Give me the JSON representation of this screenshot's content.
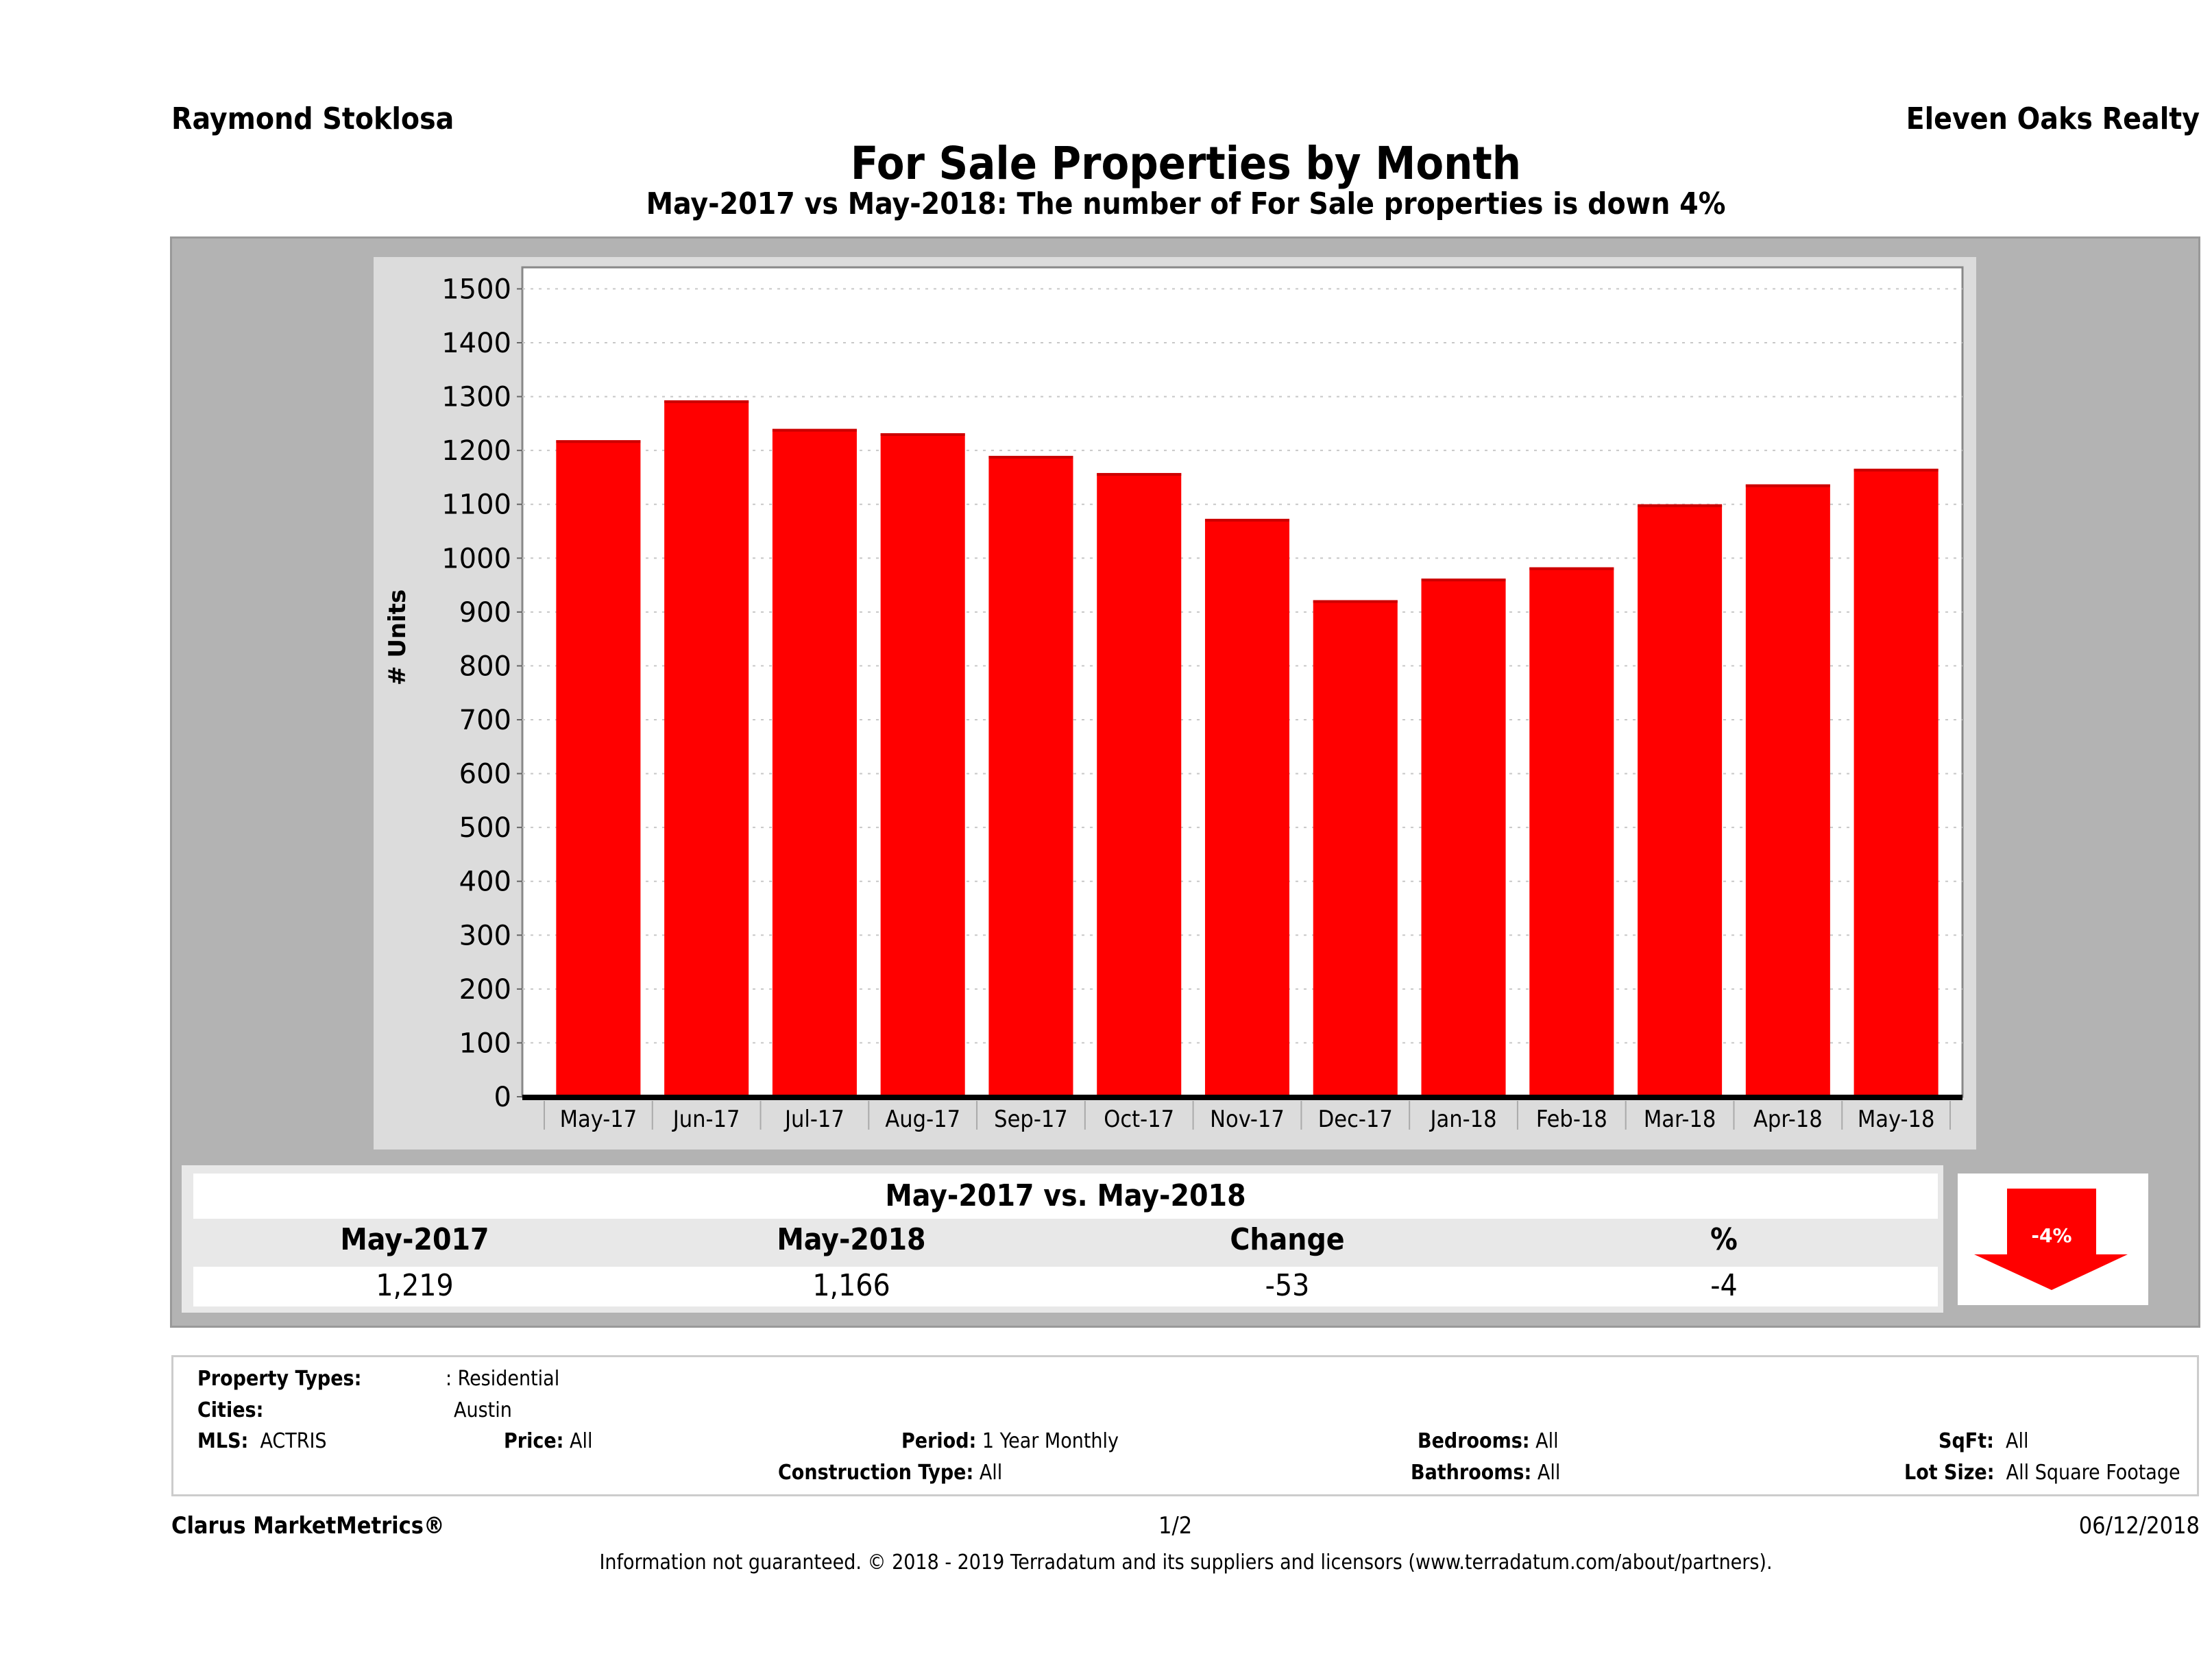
{
  "header": {
    "agent_name": "Raymond Stoklosa",
    "company": "Eleven Oaks Realty",
    "title": "For Sale Properties by Month",
    "subtitle": "May-2017 vs May-2018: The number of For Sale  properties is down 4%"
  },
  "chart_data": {
    "type": "bar",
    "title": "For Sale Properties by Month",
    "xlabel": "",
    "ylabel": "# Units",
    "categories": [
      "May-17",
      "Jun-17",
      "Jul-17",
      "Aug-17",
      "Sep-17",
      "Oct-17",
      "Nov-17",
      "Dec-17",
      "Jan-18",
      "Feb-18",
      "Mar-18",
      "Apr-18",
      "May-18"
    ],
    "values": [
      1219,
      1293,
      1240,
      1232,
      1190,
      1158,
      1073,
      922,
      962,
      983,
      1100,
      1137,
      1166
    ],
    "ylim": [
      0,
      1540
    ],
    "yticks": [
      0,
      100,
      200,
      300,
      400,
      500,
      600,
      700,
      800,
      900,
      1000,
      1100,
      1200,
      1300,
      1400,
      1500
    ],
    "grid": true,
    "legend": "none",
    "bar_color": "#ff0000"
  },
  "summary": {
    "title": "May-2017 vs. May-2018",
    "headers": [
      "May-2017",
      "May-2018",
      "Change",
      "%"
    ],
    "values": [
      "1,219",
      "1,166",
      "-53",
      "-4"
    ],
    "badge_label": "-4%",
    "badge_color": "#ff0000",
    "direction": "down"
  },
  "filters": {
    "property_types_label": "Property Types:",
    "property_types_value": ": Residential",
    "cities_label": "Cities:",
    "cities_value": "Austin",
    "mls_label": "MLS:",
    "mls_value": "ACTRIS",
    "price_label": "Price:",
    "price_value": "All",
    "period_label": "Period:",
    "period_value": "1 Year Monthly",
    "construction_label": "Construction Type:",
    "construction_value": "All",
    "bedrooms_label": "Bedrooms:",
    "bedrooms_value": "All",
    "bathrooms_label": "Bathrooms:",
    "bathrooms_value": "All",
    "sqft_label": "SqFt:",
    "sqft_value": "All",
    "lotsize_label": "Lot Size:",
    "lotsize_value": "All Square Footage"
  },
  "footer": {
    "brand": "Clarus MarketMetrics®",
    "page": "1/2",
    "date": "06/12/2018",
    "disclaimer": "Information not guaranteed. © 2018 - 2019 Terradatum and its suppliers and licensors (www.terradatum.com/about/partners)."
  }
}
